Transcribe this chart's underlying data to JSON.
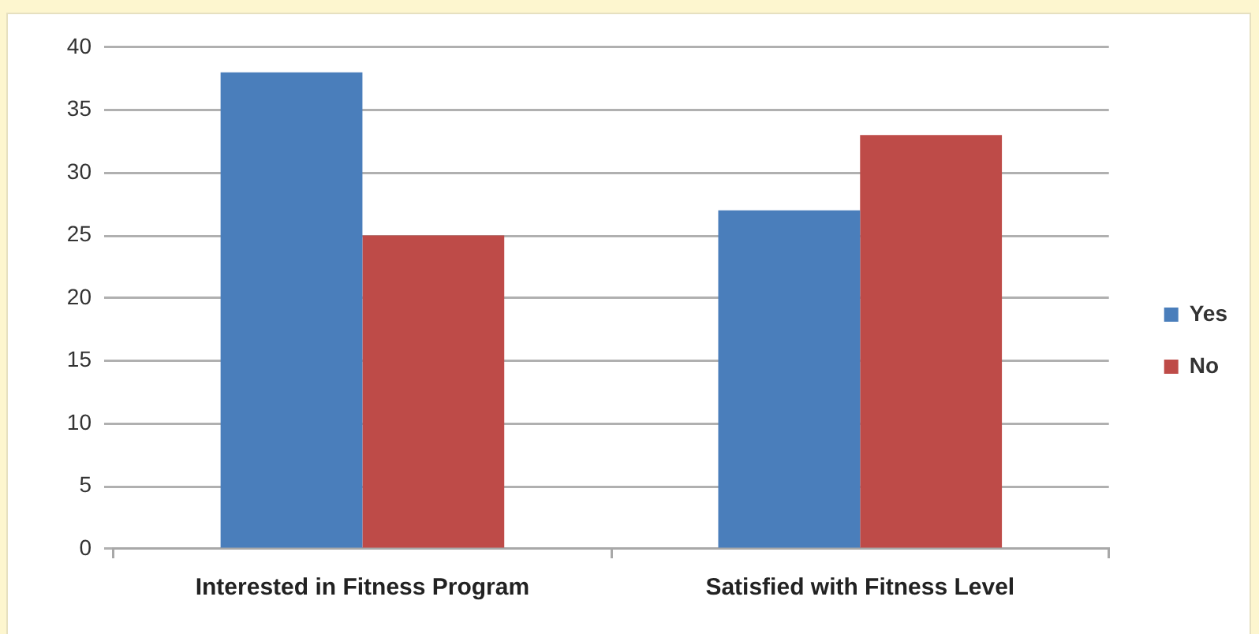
{
  "chart_data": {
    "type": "bar",
    "categories": [
      "Interested in Fitness Program",
      "Satisfied with Fitness Level"
    ],
    "series": [
      {
        "name": "Yes",
        "color": "#4a7ebb",
        "values": [
          38,
          27
        ]
      },
      {
        "name": "No",
        "color": "#be4b48",
        "values": [
          25,
          33
        ]
      }
    ],
    "ylim": [
      0,
      40
    ],
    "yticks": [
      0,
      5,
      10,
      15,
      20,
      25,
      30,
      35,
      40
    ],
    "grid": "y",
    "legend": "right"
  }
}
